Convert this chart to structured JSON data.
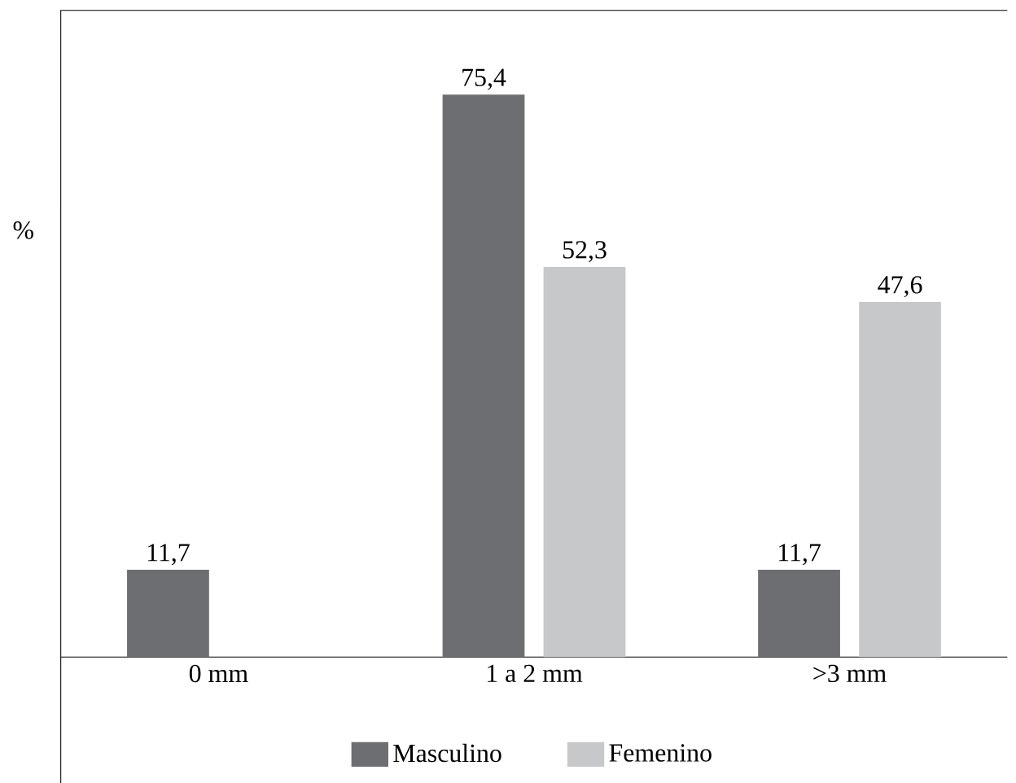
{
  "chart_data": {
    "type": "bar",
    "ylabel": "%",
    "categories": [
      "0 mm",
      "1 a 2 mm",
      ">3 mm"
    ],
    "series": [
      {
        "name": "Masculino",
        "color": "#6d6e71",
        "values": [
          11.7,
          75.4,
          11.7
        ],
        "value_labels": [
          "11,7",
          "75,4",
          "11,7"
        ]
      },
      {
        "name": "Femenino",
        "color": "#c7c8ca",
        "values": [
          null,
          52.3,
          47.6
        ],
        "value_labels": [
          null,
          "52,3",
          "47,6"
        ]
      }
    ],
    "tick_labels": "x",
    "legend": "bottom"
  }
}
